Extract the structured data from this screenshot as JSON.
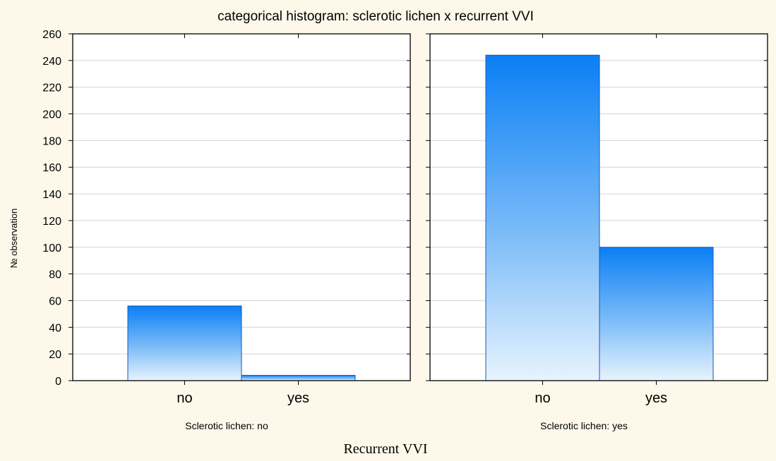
{
  "chart_data": {
    "type": "bar",
    "title": "categorical histogram:  sclerotic lichen x recurrent VVI",
    "ylabel": "№ observation",
    "xlabel": "Recurrent VVI",
    "ylim": [
      0,
      260
    ],
    "yticks": [
      0,
      20,
      40,
      60,
      80,
      100,
      120,
      140,
      160,
      180,
      200,
      220,
      240,
      260
    ],
    "grid": true,
    "categories": [
      "no",
      "yes"
    ],
    "panels": [
      {
        "label": "Sclerotic lichen: no",
        "values": [
          56,
          4
        ]
      },
      {
        "label": "Sclerotic lichen: yes",
        "values": [
          244,
          100
        ]
      }
    ]
  }
}
